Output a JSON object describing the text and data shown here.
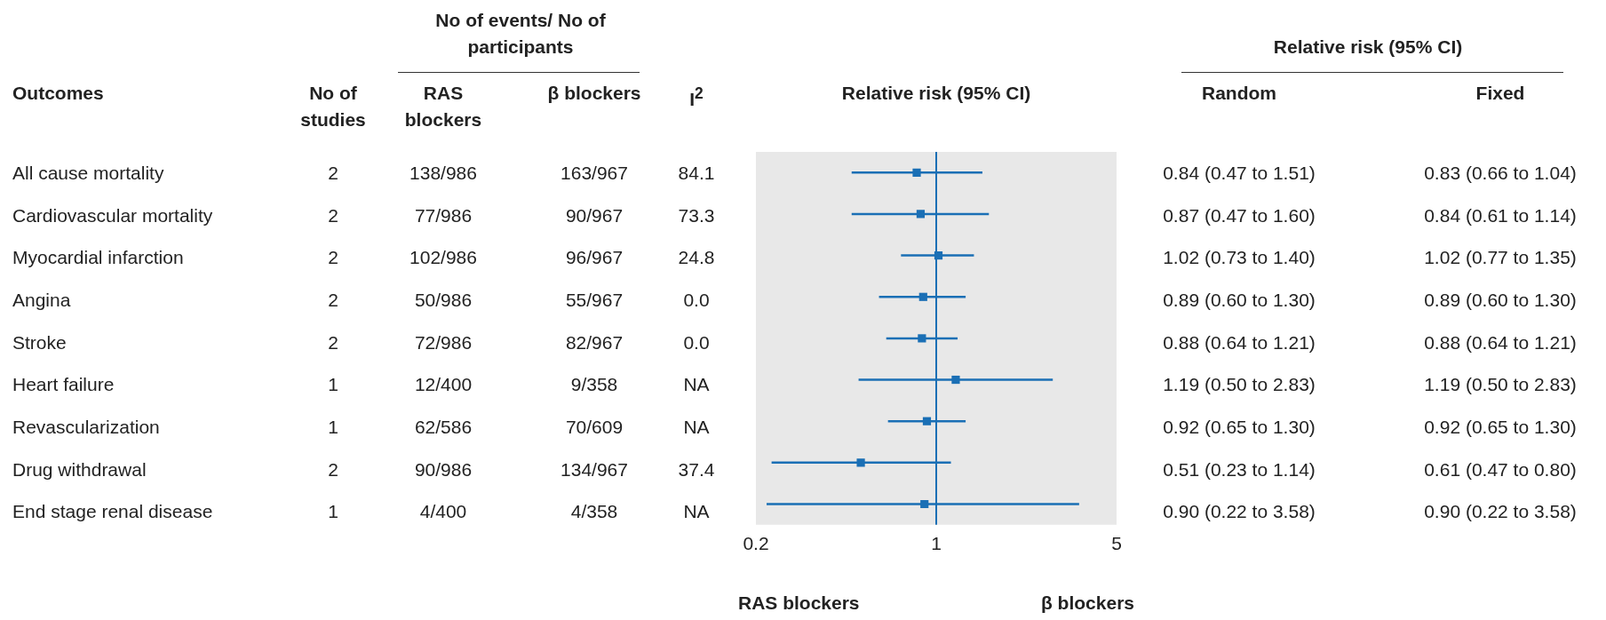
{
  "chart_data": [
    {
      "type": "other",
      "annotations": [
        "No of events/ No of participants",
        "Outcomes",
        "No of studies",
        "RAS blockers",
        "β blockers",
        "I$^{2}$",
        "All cause mortality",
        "2",
        "138/986",
        "163/967",
        "84.1",
        "Cardiovascular mortality",
        "2",
        "77/986",
        "90/967",
        "73.3",
        "Myocardial infarction",
        "2",
        "102/986",
        "96/967",
        "24.8",
        "Angina",
        "2",
        "50/986",
        "55/967",
        "0.0",
        "Stroke",
        "2",
        "72/986",
        "82/967",
        "0.0",
        "Heart failure",
        "1",
        "12/400",
        "9/358",
        "NA",
        "Revascularization",
        "1",
        "62/586",
        "70/609",
        "NA",
        "Drug withdrawal",
        "2",
        "90/986",
        "134/967",
        "37.4",
        "End stage renal disease",
        "1",
        "4/400",
        "4/358",
        "NA"
      ]
    },
    {
      "type": "scatter",
      "title": "Relative risk (95% CI)",
      "orientation": "horizontal",
      "categories": [
        null,
        null,
        null,
        null,
        null,
        null,
        null,
        null,
        null
      ],
      "values": [
        0.84,
        0.87,
        1.02,
        0.89,
        0.88,
        1.19,
        0.92,
        0.51,
        0.9
      ],
      "errors": [
        [
          0.47,
          1.51
        ],
        [
          0.47,
          1.6
        ],
        [
          0.73,
          1.4
        ],
        [
          0.6,
          1.3
        ],
        [
          0.64,
          1.21
        ],
        [
          0.5,
          2.83
        ],
        [
          0.65,
          1.3
        ],
        [
          0.23,
          1.14
        ],
        [
          0.22,
          3.58
        ]
      ],
      "color": "#1a6fb5",
      "marker": "square",
      "log": "x",
      "xlim": [
        0.2,
        5
      ],
      "xticks": [
        0.2,
        1,
        5
      ],
      "tick_labels": "x",
      "ref_lines": [
        {
          "axis": "x",
          "value": 1,
          "color": "#1a6fb5"
        }
      ],
      "annotations": [
        "RAS blockers",
        "β blockers"
      ]
    },
    {
      "type": "other",
      "title": "Relative risk (95% CI)",
      "annotations": [
        "Random",
        "Fixed",
        "0.84 (0.47 to 1.51)",
        "0.83 (0.66 to 1.04)",
        "0.87 (0.47 to 1.60)",
        "0.84 (0.61 to 1.14)",
        "1.02 (0.73 to 1.40)",
        "1.02 (0.77 to 1.35)",
        "0.89 (0.60 to 1.30)",
        "0.89 (0.60 to 1.30)",
        "0.88 (0.64 to 1.21)",
        "0.88 (0.64 to 1.21)",
        "1.19 (0.50 to 2.83)",
        "1.19 (0.50 to 2.83)",
        "0.92 (0.65 to 1.30)",
        "0.92 (0.65 to 1.30)",
        "0.51 (0.23 to 1.14)",
        "0.61 (0.47 to 0.80)",
        "0.90 (0.22 to 3.58)",
        "0.90 (0.22 to 3.58)"
      ]
    }
  ]
}
